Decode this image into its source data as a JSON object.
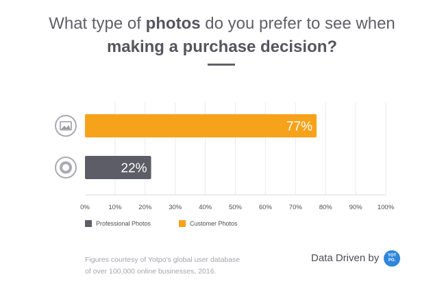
{
  "title": {
    "part1": "What type of ",
    "bold1": "photos",
    "part2": " do you prefer to see when",
    "line2": "making a purchase decision?"
  },
  "chart_data": {
    "type": "bar",
    "orientation": "horizontal",
    "categories": [
      "Customer Photos",
      "Professional Photos"
    ],
    "values": [
      77,
      22
    ],
    "value_labels": [
      "77%",
      "22%"
    ],
    "bar_colors": [
      "#f7a21b",
      "#5c5d66"
    ],
    "category_icons": [
      "image-icon",
      "camera-lens-icon"
    ],
    "xlim": [
      0,
      100
    ],
    "xticks": [
      "0%",
      "10%",
      "20%",
      "30%",
      "40%",
      "50%",
      "60%",
      "70%",
      "80%",
      "90%",
      "100%"
    ],
    "grid": true,
    "legend_position": "bottom-left"
  },
  "legend": [
    {
      "label": "Professional Photos",
      "color": "#5c5d66"
    },
    {
      "label": "Customer Photos",
      "color": "#f7a21b"
    }
  ],
  "footnote": {
    "line1": "Figures courtesy of Yotpo's global user database",
    "line2": "of over 100,000 online businesses, 2016."
  },
  "brand": {
    "text": "Data Driven by",
    "badge_line1": "YOT",
    "badge_line2": "PO.",
    "badge_color": "#2e86de"
  }
}
